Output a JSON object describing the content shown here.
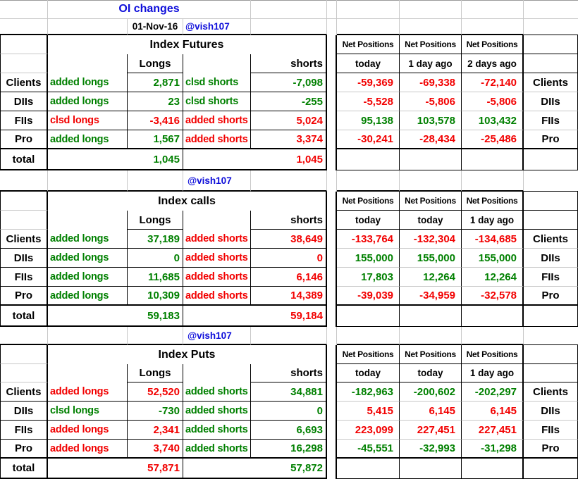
{
  "sheet": {
    "title": "OI changes",
    "date": "01-Nov-16",
    "handle": "@vish107",
    "net_header": "Net Positions",
    "colors": {
      "positive_green": "#008000",
      "negative_red": "#f20000",
      "link_blue": "#0d0dda",
      "gridline_gray": "#c8c8c8",
      "border_black": "#000000"
    },
    "sections": [
      {
        "key": "futures",
        "title": "Index Futures",
        "longs_header": "Longs",
        "shorts_header": "shorts",
        "net_subheaders": [
          "today",
          "1 day ago",
          "2 days ago"
        ],
        "rows": [
          {
            "key": "clients",
            "label": "Clients",
            "long_action": "added longs",
            "long_action_color": "green",
            "long_value": "2,871",
            "long_value_color": "green",
            "short_action": "clsd shorts",
            "short_action_color": "green",
            "short_value": "-7,098",
            "short_value_color": "green",
            "net_values": [
              "-59,369",
              "-69,338",
              "-72,140"
            ],
            "net_colors": [
              "red",
              "red",
              "red"
            ]
          },
          {
            "key": "diis",
            "label": "DIIs",
            "long_action": "added longs",
            "long_action_color": "green",
            "long_value": "23",
            "long_value_color": "green",
            "short_action": "clsd shorts",
            "short_action_color": "green",
            "short_value": "-255",
            "short_value_color": "green",
            "net_values": [
              "-5,528",
              "-5,806",
              "-5,806"
            ],
            "net_colors": [
              "red",
              "red",
              "red"
            ]
          },
          {
            "key": "fiis",
            "label": "FIIs",
            "long_action": "clsd longs",
            "long_action_color": "red",
            "long_value": "-3,416",
            "long_value_color": "red",
            "short_action": "added shorts",
            "short_action_color": "red",
            "short_value": "5,024",
            "short_value_color": "red",
            "net_values": [
              "95,138",
              "103,578",
              "103,432"
            ],
            "net_colors": [
              "green",
              "green",
              "green"
            ]
          },
          {
            "key": "pro",
            "label": "Pro",
            "long_action": "added longs",
            "long_action_color": "green",
            "long_value": "1,567",
            "long_value_color": "green",
            "short_action": "added shorts",
            "short_action_color": "red",
            "short_value": "3,374",
            "short_value_color": "red",
            "net_values": [
              "-30,241",
              "-28,434",
              "-25,486"
            ],
            "net_colors": [
              "red",
              "red",
              "red"
            ]
          }
        ],
        "total": {
          "label": "total",
          "long_value": "1,045",
          "long_color": "green",
          "short_value": "1,045",
          "short_color": "red"
        }
      },
      {
        "key": "calls",
        "title": "Index calls",
        "longs_header": "Longs",
        "shorts_header": "shorts",
        "net_subheaders": [
          "today",
          "today",
          "1 day ago"
        ],
        "rows": [
          {
            "key": "clients",
            "label": "Clients",
            "long_action": "added longs",
            "long_action_color": "green",
            "long_value": "37,189",
            "long_value_color": "green",
            "short_action": "added shorts",
            "short_action_color": "red",
            "short_value": "38,649",
            "short_value_color": "red",
            "net_values": [
              "-133,764",
              "-132,304",
              "-134,685"
            ],
            "net_colors": [
              "red",
              "red",
              "red"
            ]
          },
          {
            "key": "diis",
            "label": "DIIs",
            "long_action": "added longs",
            "long_action_color": "green",
            "long_value": "0",
            "long_value_color": "green",
            "short_action": "added shorts",
            "short_action_color": "red",
            "short_value": "0",
            "short_value_color": "red",
            "net_values": [
              "155,000",
              "155,000",
              "155,000"
            ],
            "net_colors": [
              "green",
              "green",
              "green"
            ]
          },
          {
            "key": "fiis",
            "label": "FIIs",
            "long_action": "added longs",
            "long_action_color": "green",
            "long_value": "11,685",
            "long_value_color": "green",
            "short_action": "added shorts",
            "short_action_color": "red",
            "short_value": "6,146",
            "short_value_color": "red",
            "net_values": [
              "17,803",
              "12,264",
              "12,264"
            ],
            "net_colors": [
              "green",
              "green",
              "green"
            ]
          },
          {
            "key": "pro",
            "label": "Pro",
            "long_action": "added longs",
            "long_action_color": "green",
            "long_value": "10,309",
            "long_value_color": "green",
            "short_action": "added shorts",
            "short_action_color": "red",
            "short_value": "14,389",
            "short_value_color": "red",
            "net_values": [
              "-39,039",
              "-34,959",
              "-32,578"
            ],
            "net_colors": [
              "red",
              "red",
              "red"
            ]
          }
        ],
        "total": {
          "label": "total",
          "long_value": "59,183",
          "long_color": "green",
          "short_value": "59,184",
          "short_color": "red"
        }
      },
      {
        "key": "puts",
        "title": "Index Puts",
        "longs_header": "Longs",
        "shorts_header": "shorts",
        "net_subheaders": [
          "today",
          "today",
          "1 day ago"
        ],
        "rows": [
          {
            "key": "clients",
            "label": "Clients",
            "long_action": "added longs",
            "long_action_color": "red",
            "long_value": "52,520",
            "long_value_color": "red",
            "short_action": "added shorts",
            "short_action_color": "green",
            "short_value": "34,881",
            "short_value_color": "green",
            "net_values": [
              "-182,963",
              "-200,602",
              "-202,297"
            ],
            "net_colors": [
              "green",
              "green",
              "green"
            ]
          },
          {
            "key": "diis",
            "label": "DIIs",
            "long_action": "clsd longs",
            "long_action_color": "green",
            "long_value": "-730",
            "long_value_color": "green",
            "short_action": "added shorts",
            "short_action_color": "green",
            "short_value": "0",
            "short_value_color": "green",
            "net_values": [
              "5,415",
              "6,145",
              "6,145"
            ],
            "net_colors": [
              "red",
              "red",
              "red"
            ]
          },
          {
            "key": "fiis",
            "label": "FIIs",
            "long_action": "added longs",
            "long_action_color": "red",
            "long_value": "2,341",
            "long_value_color": "red",
            "short_action": "added shorts",
            "short_action_color": "green",
            "short_value": "6,693",
            "short_value_color": "green",
            "net_values": [
              "223,099",
              "227,451",
              "227,451"
            ],
            "net_colors": [
              "red",
              "red",
              "red"
            ]
          },
          {
            "key": "pro",
            "label": "Pro",
            "long_action": "added longs",
            "long_action_color": "red",
            "long_value": "3,740",
            "long_value_color": "red",
            "short_action": "added shorts",
            "short_action_color": "green",
            "short_value": "16,298",
            "short_value_color": "green",
            "net_values": [
              "-45,551",
              "-32,993",
              "-31,298"
            ],
            "net_colors": [
              "green",
              "green",
              "green"
            ]
          }
        ],
        "total": {
          "label": "total",
          "long_value": "57,871",
          "long_color": "red",
          "short_value": "57,872",
          "short_color": "green"
        }
      }
    ]
  }
}
